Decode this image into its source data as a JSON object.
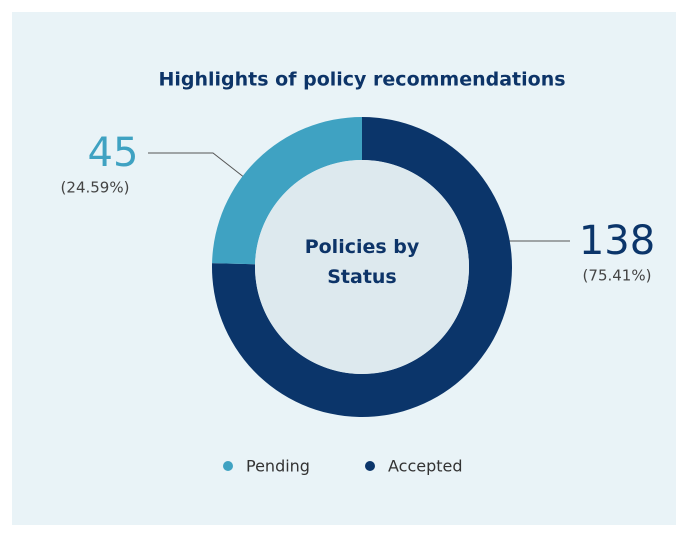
{
  "chart_data": {
    "type": "donut",
    "title": "Highlights of policy recommendations",
    "center_label": "Policies by Status",
    "categories": [
      "Pending",
      "Accepted"
    ],
    "values": [
      45,
      138
    ],
    "percent_labels": [
      "(24.59%)",
      "(75.41%)"
    ],
    "colors": [
      "#3fa2c2",
      "#0b356a"
    ],
    "legend": "bottom"
  }
}
